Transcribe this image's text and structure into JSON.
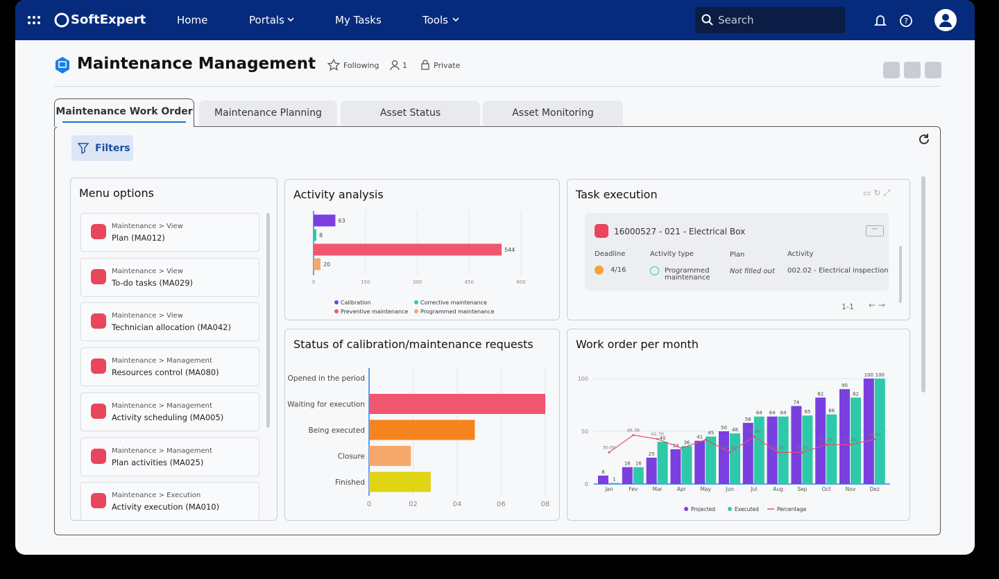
{
  "nav": {
    "logo": "SoftExpert",
    "items": [
      "Home",
      "Portals",
      "My Tasks",
      "Tools"
    ],
    "search": "Search"
  },
  "header": {
    "title": "Maintenance Management",
    "following": "Following",
    "members": "1",
    "privacy": "Private"
  },
  "tabs": [
    "Maintenance Work Order",
    "Maintenance Planning",
    "Asset Status",
    "Asset Monitoring"
  ],
  "filters": "Filters",
  "menu": {
    "title": "Menu options",
    "items": [
      {
        "path": "Maintenance > View",
        "label": "Plan (MA012)"
      },
      {
        "path": "Maintenance > View",
        "label": "To-do tasks (MA029)"
      },
      {
        "path": "Maintenance > View",
        "label": "Technician allocation (MA042)"
      },
      {
        "path": "Maintenance > Management",
        "label": "Resources control (MA080)"
      },
      {
        "path": "Maintenance > Management",
        "label": "Activity scheduling (MA005)"
      },
      {
        "path": "Maintenance > Management",
        "label": "Plan activities (MA025)"
      },
      {
        "path": "Maintenance > Execution",
        "label": "Activity execution (MA010)"
      }
    ]
  },
  "task": {
    "title": "Task execution",
    "record": "16000527 - 021 - Electrical Box",
    "columns": [
      "Deadline",
      "Activity type",
      "Plan",
      "Activity"
    ],
    "cells": [
      "4/16",
      "Programmed maintenance",
      "Not filled out",
      "002.02 - Electrical inspection"
    ],
    "pagination": "1-1"
  },
  "chart_data": [
    {
      "type": "bar",
      "orientation": "horizontal",
      "title": "Activity analysis",
      "categories": [
        "Calibration",
        "Corrective maintenance",
        "Preventive maintenance",
        "Programmed maintenance"
      ],
      "values": [
        63,
        8,
        544,
        20
      ],
      "colors": [
        "#7b3fe0",
        "#2ec9a8",
        "#f0566e",
        "#f6a86a"
      ],
      "xlim": [
        0,
        600
      ],
      "xticks": [
        0,
        150,
        300,
        450,
        600
      ],
      "grid": true,
      "legend": "bottom",
      "data_labels": true
    },
    {
      "type": "bar",
      "orientation": "horizontal",
      "title": "Status of calibration/maintenance requests",
      "categories": [
        "Opened in the period",
        "Waiting for execution",
        "Being executed",
        "Closure",
        "Finished"
      ],
      "values": [
        0,
        0.8,
        0.48,
        0.19,
        0.28
      ],
      "colors": [
        "#2b7de9",
        "#f0566e",
        "#f5841f",
        "#f6a86a",
        "#e0d414"
      ],
      "xlim": [
        0,
        0.8
      ],
      "xticks": [
        0,
        {
          "value": 0.2,
          "label": "02"
        },
        {
          "value": 0.4,
          "label": "04"
        },
        {
          "value": 0.6,
          "label": "06"
        },
        {
          "value": 0.8,
          "label": "08"
        }
      ],
      "grid": true,
      "data_labels": false
    },
    {
      "type": "bar",
      "title": "Work order per month",
      "categories": [
        "Jan",
        "Fev",
        "Mar",
        "Apr",
        "May",
        "Jun",
        "Jul",
        "Aug",
        "Sep",
        "Oct",
        "Nov",
        "Dez"
      ],
      "series": [
        {
          "name": "Projected",
          "color": "#7b3fe0",
          "values": [
            8,
            16,
            25,
            33,
            41,
            50,
            58,
            64,
            74,
            82,
            90,
            100
          ]
        },
        {
          "name": "Executed",
          "color": "#2ec9a8",
          "values": [
            1,
            16,
            40,
            36,
            45,
            48,
            64,
            64,
            65,
            66,
            82,
            100
          ]
        },
        {
          "name": "Percentage",
          "type": "line",
          "color": "#e8506a",
          "values": [
            30,
            46.36,
            42.7,
            34,
            42,
            30,
            44.96,
            30,
            30,
            37.33,
            37.41,
            42.44
          ],
          "value_labels": [
            "30.00",
            "46.36",
            "42.70",
            null,
            null,
            "30.00",
            "44.96",
            "30.00",
            "30.00",
            "37.33",
            "37.41",
            "42.44"
          ]
        }
      ],
      "ylim": [
        0,
        100
      ],
      "yticks": [
        0,
        50,
        100
      ],
      "grid": true,
      "legend": "bottom"
    }
  ]
}
